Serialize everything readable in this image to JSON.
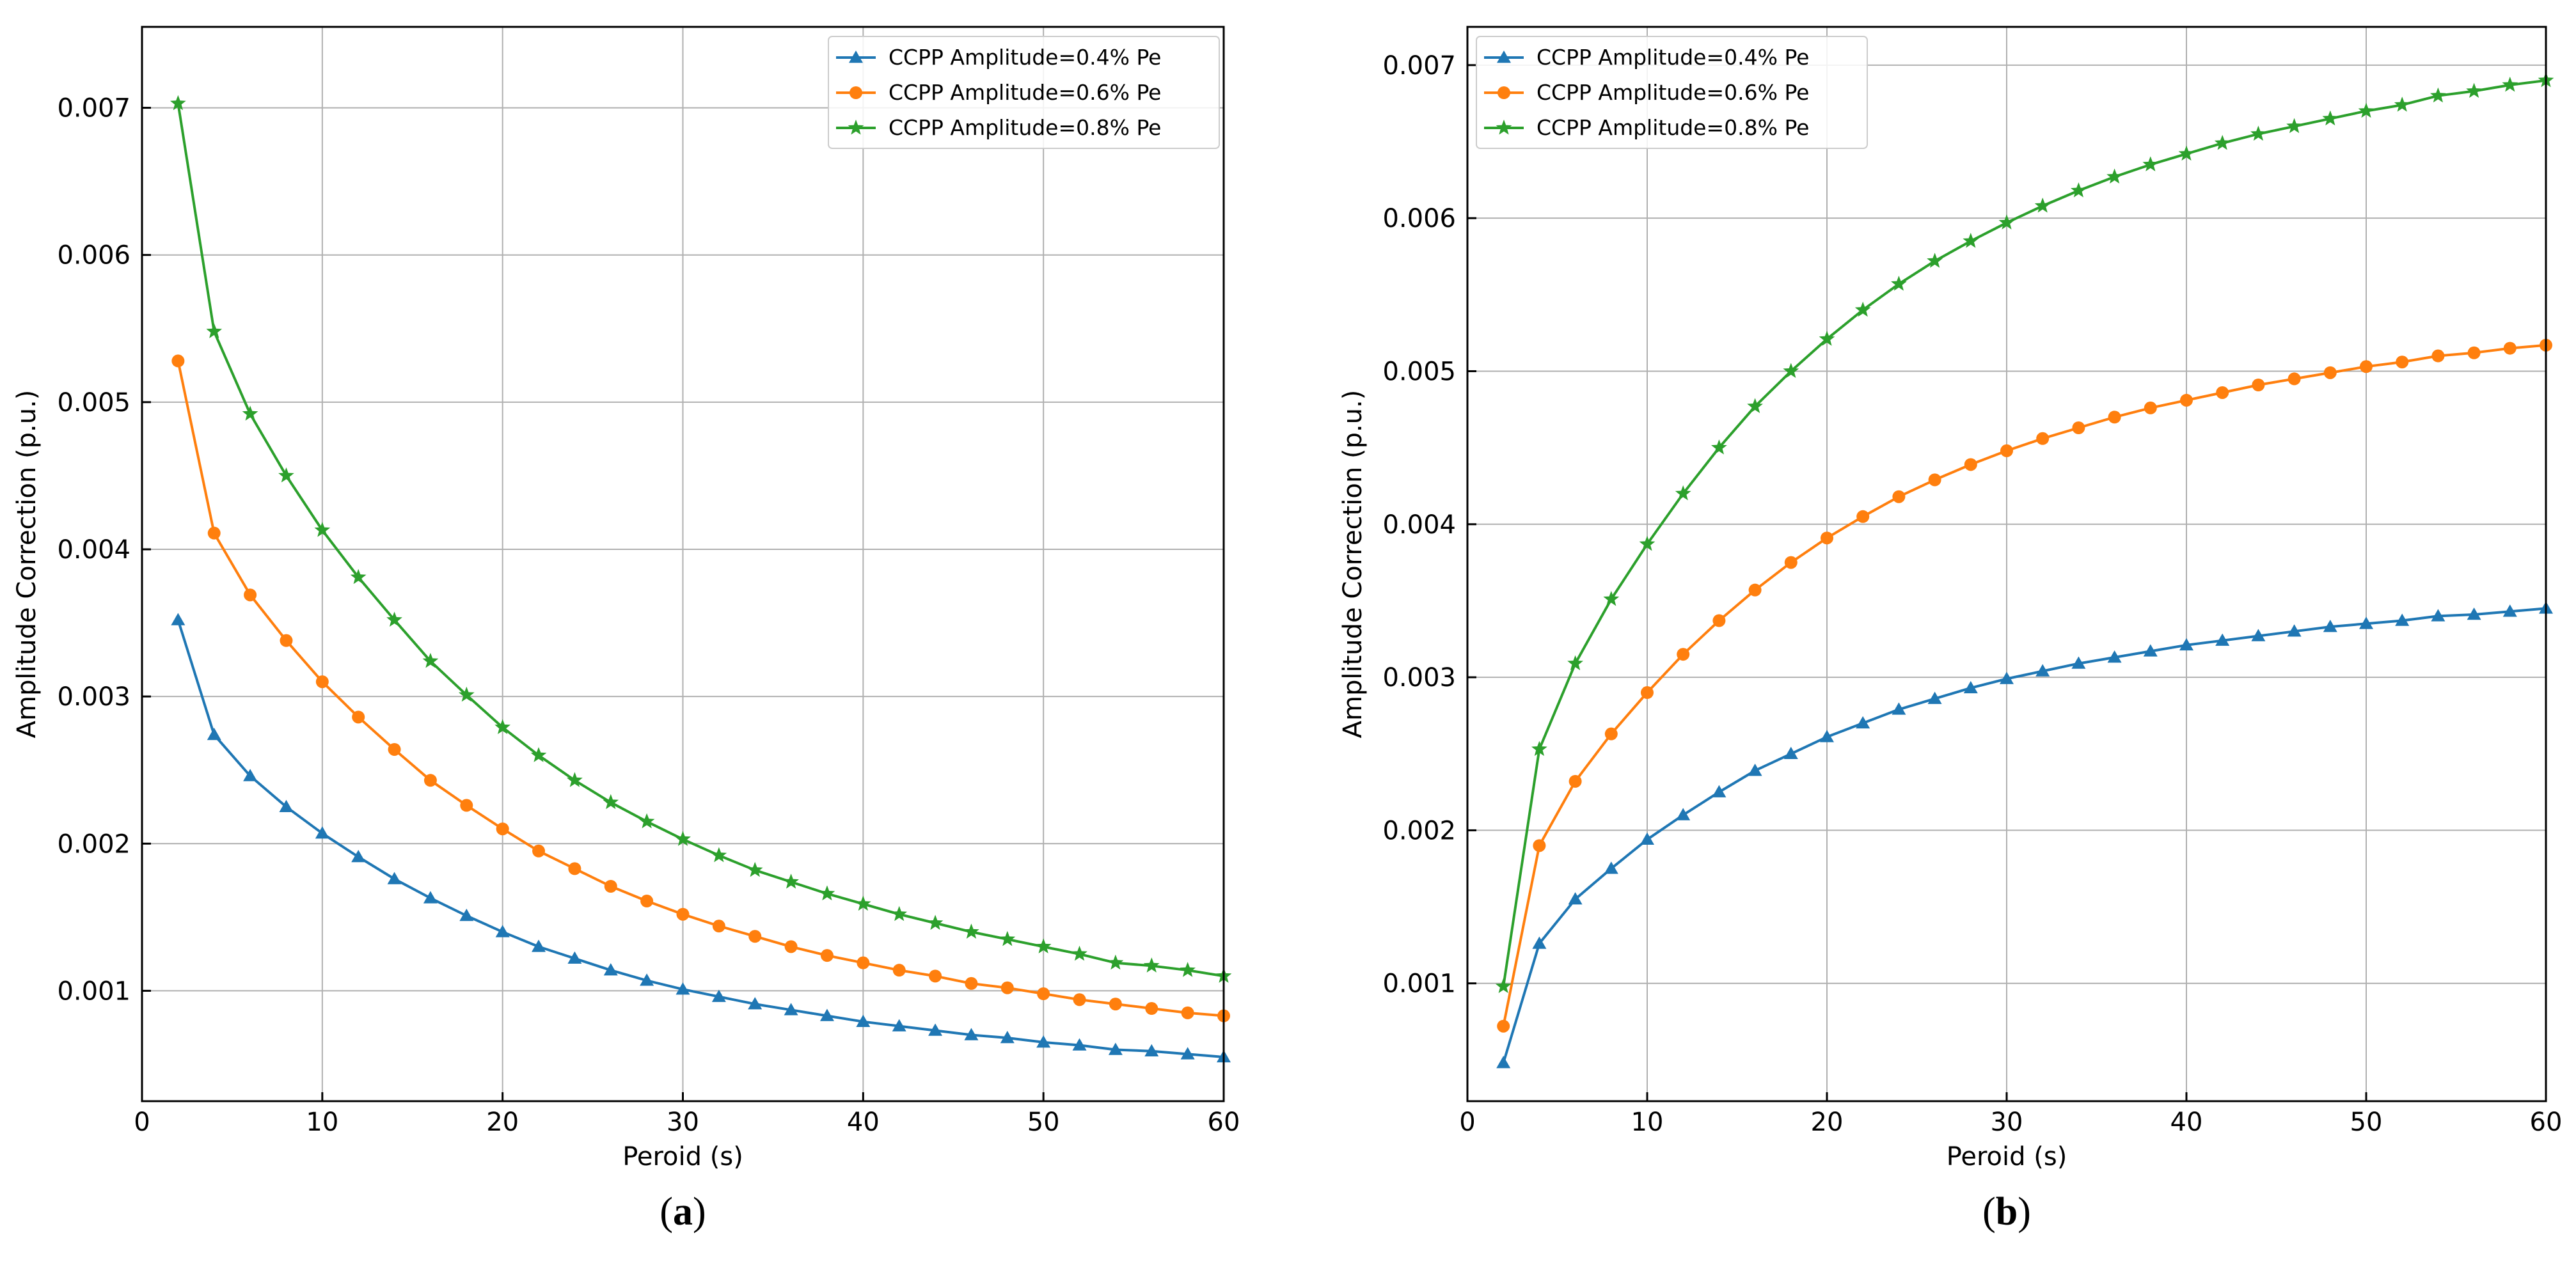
{
  "colors": {
    "series_0": "#1f77b4",
    "series_1": "#ff7f0e",
    "series_2": "#2ca02c",
    "grid": "#b0b0b0",
    "axis": "#000000"
  },
  "chart_data": [
    {
      "type": "line",
      "caption_open": "(",
      "caption_letter": "a",
      "caption_close": ")",
      "title": "",
      "xlabel": "Peroid (s)",
      "ylabel": "Amplitude Correction (p.u.)",
      "xlim": [
        0,
        60
      ],
      "ylim": [
        0.00025,
        0.00755
      ],
      "xticks": [
        0,
        10,
        20,
        30,
        40,
        50,
        60
      ],
      "xtick_labels": [
        "0",
        "10",
        "20",
        "30",
        "40",
        "50",
        "60"
      ],
      "yticks": [
        0.001,
        0.002,
        0.003,
        0.004,
        0.005,
        0.006,
        0.007
      ],
      "ytick_labels": [
        "0.001",
        "0.002",
        "0.003",
        "0.004",
        "0.005",
        "0.006",
        "0.007"
      ],
      "grid": true,
      "legend_position": "top-right",
      "x": [
        2,
        4,
        6,
        8,
        10,
        12,
        14,
        16,
        18,
        20,
        22,
        24,
        26,
        28,
        30,
        32,
        34,
        36,
        38,
        40,
        42,
        44,
        46,
        48,
        50,
        52,
        54,
        56,
        58,
        60
      ],
      "series": [
        {
          "name": "CCPP Amplitude=0.4% Pe",
          "marker": "triangle",
          "values": [
            0.00352,
            0.00274,
            0.00246,
            0.00225,
            0.00207,
            0.00191,
            0.00176,
            0.00163,
            0.00151,
            0.0014,
            0.0013,
            0.00122,
            0.00114,
            0.00107,
            0.00101,
            0.00096,
            0.00091,
            0.00087,
            0.00083,
            0.00079,
            0.00076,
            0.00073,
            0.0007,
            0.00068,
            0.00065,
            0.00063,
            0.0006,
            0.00059,
            0.00057,
            0.00055
          ]
        },
        {
          "name": "CCPP Amplitude=0.6% Pe",
          "marker": "circle",
          "values": [
            0.00528,
            0.00411,
            0.00369,
            0.00338,
            0.0031,
            0.00286,
            0.00264,
            0.00243,
            0.00226,
            0.0021,
            0.00195,
            0.00183,
            0.00171,
            0.00161,
            0.00152,
            0.00144,
            0.00137,
            0.0013,
            0.00124,
            0.00119,
            0.00114,
            0.0011,
            0.00105,
            0.00102,
            0.00098,
            0.00094,
            0.00091,
            0.00088,
            0.00085,
            0.00083
          ]
        },
        {
          "name": "CCPP Amplitude=0.8% Pe",
          "marker": "star",
          "values": [
            0.00703,
            0.00548,
            0.00492,
            0.0045,
            0.00413,
            0.00381,
            0.00352,
            0.00324,
            0.00301,
            0.00279,
            0.0026,
            0.00243,
            0.00228,
            0.00215,
            0.00203,
            0.00192,
            0.00182,
            0.00174,
            0.00166,
            0.00159,
            0.00152,
            0.00146,
            0.0014,
            0.00135,
            0.0013,
            0.00125,
            0.00119,
            0.00117,
            0.00114,
            0.0011
          ]
        }
      ]
    },
    {
      "type": "line",
      "caption_open": "(",
      "caption_letter": "b",
      "caption_close": ")",
      "title": "",
      "xlabel": "Peroid (s)",
      "ylabel": "Amplitude Correction (p.u.)",
      "xlim": [
        0,
        60
      ],
      "ylim": [
        0.00023,
        0.00725
      ],
      "xticks": [
        0,
        10,
        20,
        30,
        40,
        50,
        60
      ],
      "xtick_labels": [
        "0",
        "10",
        "20",
        "30",
        "40",
        "50",
        "60"
      ],
      "yticks": [
        0.001,
        0.002,
        0.003,
        0.004,
        0.005,
        0.006,
        0.007
      ],
      "ytick_labels": [
        "0.001",
        "0.002",
        "0.003",
        "0.004",
        "0.005",
        "0.006",
        "0.007"
      ],
      "grid": true,
      "legend_position": "top-left",
      "x": [
        2,
        4,
        6,
        8,
        10,
        12,
        14,
        16,
        18,
        20,
        22,
        24,
        26,
        28,
        30,
        32,
        34,
        36,
        38,
        40,
        42,
        44,
        46,
        48,
        50,
        52,
        54,
        56,
        58,
        60
      ],
      "series": [
        {
          "name": "CCPP Amplitude=0.4% Pe",
          "marker": "triangle",
          "values": [
            0.00048,
            0.00126,
            0.00155,
            0.00175,
            0.00194,
            0.0021,
            0.00225,
            0.00239,
            0.0025,
            0.00261,
            0.0027,
            0.00279,
            0.00286,
            0.00293,
            0.00299,
            0.00304,
            0.00309,
            0.00313,
            0.00317,
            0.00321,
            0.00324,
            0.00327,
            0.0033,
            0.00333,
            0.00335,
            0.00337,
            0.0034,
            0.00341,
            0.00343,
            0.00345
          ]
        },
        {
          "name": "CCPP Amplitude=0.6% Pe",
          "marker": "circle",
          "values": [
            0.00072,
            0.0019,
            0.00232,
            0.00263,
            0.0029,
            0.00315,
            0.00337,
            0.00357,
            0.00375,
            0.00391,
            0.00405,
            0.00418,
            0.00429,
            0.00439,
            0.00448,
            0.00456,
            0.00463,
            0.0047,
            0.00476,
            0.00481,
            0.00486,
            0.00491,
            0.00495,
            0.00499,
            0.00503,
            0.00506,
            0.0051,
            0.00512,
            0.00515,
            0.00517
          ]
        },
        {
          "name": "CCPP Amplitude=0.8% Pe",
          "marker": "star",
          "values": [
            0.00098,
            0.00253,
            0.00309,
            0.00351,
            0.00387,
            0.0042,
            0.0045,
            0.00477,
            0.005,
            0.00521,
            0.0054,
            0.00557,
            0.00572,
            0.00585,
            0.00597,
            0.00608,
            0.00618,
            0.00627,
            0.00635,
            0.00642,
            0.00649,
            0.00655,
            0.0066,
            0.00665,
            0.0067,
            0.00674,
            0.0068,
            0.00683,
            0.00687,
            0.0069
          ]
        }
      ]
    }
  ]
}
